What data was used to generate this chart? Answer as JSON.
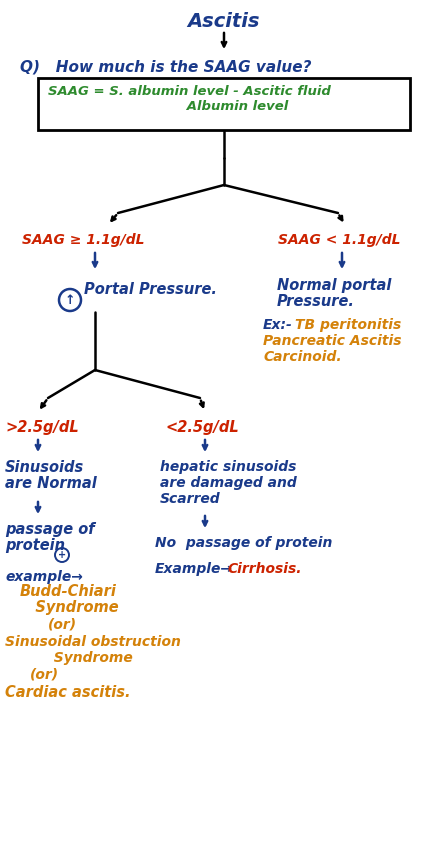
{
  "bg_color": "#ffffff",
  "title": "Ascitis",
  "title_color": "#1a3a8a",
  "question": "Q)   How much is the SAAG value?",
  "question_color": "#1a3a8a",
  "formula_line1": "SAAG = S. albumin level - Ascitic fluid",
  "formula_line2": "                              Albumin level",
  "formula_color": "#2e8b2e",
  "saag_high": "SAAG ≥ 1.1g/dL",
  "saag_low": "SAAG < 1.1g/dL",
  "saag_color": "#cc2200",
  "portal_pressure_high_color": "#1a3a8a",
  "normal_portal_line1": "Normal portal",
  "normal_portal_line2": "Pressure.",
  "normal_portal_color": "#1a3a8a",
  "ex_label": "Ex:-",
  "ex_label_color": "#1a3a8a",
  "examples_right_line1": "TB peritonitis",
  "examples_right_line2": "Pancreatic Ascitis",
  "examples_right_line3": "Carcinoid.",
  "examples_right_color": "#d4820a",
  "high_protein": ">2.5g/dL",
  "low_protein": "<2.5g/dL",
  "protein_color": "#cc2200",
  "sinusoids_normal_line1": "Sinusoids",
  "sinusoids_normal_line2": "are Normal",
  "sinusoids_normal_color": "#1a3a8a",
  "sinusoids_damaged_line1": "hepatic sinusoids",
  "sinusoids_damaged_line2": "are damaged and",
  "sinusoids_damaged_line3": "Scarred",
  "sinusoids_damaged_color": "#1a3a8a",
  "passage_line1": "passage of",
  "passage_line2": "protein",
  "passage_protein_color": "#1a3a8a",
  "no_passage": "No  passage of protein",
  "no_passage_color": "#1a3a8a",
  "example_label_left": "example→",
  "example_label_left_color": "#1a3a8a",
  "example_label_right": "Example→",
  "example_label_right_color": "#1a3a8a",
  "cirrhosis": "Cirrhosis.",
  "cirrhosis_color": "#cc2200",
  "budd_chiari_line1": "Budd-Chiari",
  "budd_chiari_line2": "   Syndrome",
  "or1": "(or)",
  "sinusoidal_line1": "Sinusoidal obstruction",
  "sinusoidal_line2": "          Syndrome",
  "or2": "(or)",
  "cardiac": "Cardiac ascitis.",
  "examples_left_color": "#d4820a",
  "circle_color": "#1a3a8a",
  "arrow_color": "#000000",
  "line_color": "#000000"
}
